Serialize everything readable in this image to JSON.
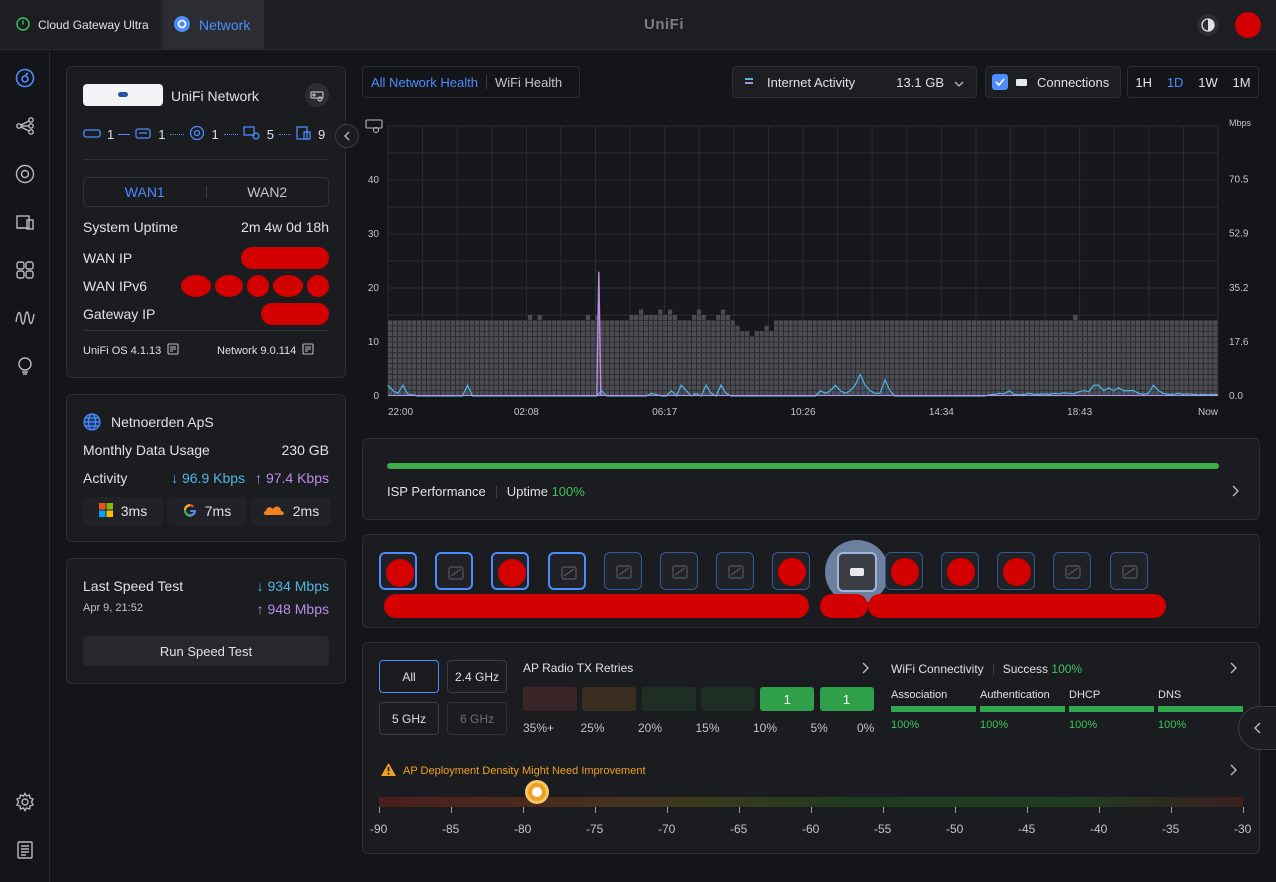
{
  "topbar": {
    "console_name": "Cloud Gateway Ultra",
    "app_name": "Network",
    "brand": "UniFi"
  },
  "colors": {
    "accent": "#4c8cff",
    "green": "#3cc45b",
    "download": "#50b6e0",
    "upload": "#b68ee6",
    "warning": "#f0a020"
  },
  "gateway": {
    "title": "UniFi Network",
    "topology": [
      {
        "icon": "gateway-icon",
        "count": "1"
      },
      {
        "icon": "switch-icon",
        "count": "1"
      },
      {
        "icon": "ap-icon",
        "count": "1"
      },
      {
        "icon": "clients-wired-icon",
        "count": "5"
      },
      {
        "icon": "clients-wifi-icon",
        "count": "9"
      }
    ],
    "wan_tabs": [
      "WAN1",
      "WAN2"
    ],
    "rows": [
      {
        "label": "System Uptime",
        "value": "2m 4w 0d 18h"
      },
      {
        "label": "WAN IP",
        "value": ""
      },
      {
        "label": "WAN IPv6",
        "value": ""
      },
      {
        "label": "Gateway IP",
        "value": ""
      }
    ],
    "os_version": "UniFi OS 4.1.13",
    "network_version": "Network 9.0.114"
  },
  "isp": {
    "name": "Netnoerden ApS",
    "monthly_label": "Monthly Data Usage",
    "monthly_value": "230 GB",
    "activity_label": "Activity",
    "download": "96.9 Kbps",
    "upload": "97.4 Kbps",
    "latencies": [
      {
        "icon": "microsoft-icon",
        "value": "3ms"
      },
      {
        "icon": "google-icon",
        "value": "7ms"
      },
      {
        "icon": "cloudflare-icon",
        "value": "2ms"
      }
    ]
  },
  "speedtest": {
    "title": "Last Speed Test",
    "date": "Apr 9, 21:52",
    "download": "934 Mbps",
    "upload": "948 Mbps",
    "run_label": "Run Speed Test"
  },
  "health_tabs": [
    "All Network Health",
    "WiFi Health"
  ],
  "controls": {
    "metric": "Internet Activity",
    "metric_total": "13.1 GB",
    "connections": "Connections",
    "ranges": [
      "1H",
      "1D",
      "1W",
      "1M"
    ],
    "active_range": "1D"
  },
  "chart_data": {
    "type": "area",
    "title": "Internet Activity",
    "x_tick_labels": [
      "22:00",
      "02:08",
      "06:17",
      "10:26",
      "14:34",
      "18:43",
      "Now"
    ],
    "y_left_ticks": [
      "0",
      "10",
      "20",
      "30",
      "40"
    ],
    "y_right_unit": "Mbps",
    "y_right_ticks": [
      "0.0",
      "17.6",
      "35.2",
      "52.9",
      "70.5"
    ],
    "ylim_left": [
      0,
      50
    ],
    "ylim_right": [
      0,
      88
    ],
    "series": [
      {
        "name": "Connections",
        "color": "#9a9ca3",
        "style": "bars",
        "values": [
          14,
          14,
          14,
          14,
          14,
          14,
          14,
          14,
          14,
          14,
          14,
          14,
          14,
          14,
          14,
          14,
          14,
          14,
          14,
          14,
          14,
          14,
          14,
          14,
          14,
          14,
          14,
          14,
          14,
          15,
          14,
          15,
          14,
          14,
          14,
          14,
          14,
          14,
          14,
          14,
          14,
          15,
          14,
          15,
          14,
          14,
          14,
          14,
          14,
          14,
          15,
          15,
          16,
          15,
          15,
          15,
          16,
          15,
          16,
          15,
          14,
          14,
          14,
          15,
          16,
          15,
          14,
          14,
          15,
          16,
          15,
          14,
          13,
          12,
          12,
          11,
          12,
          12,
          13,
          12,
          14,
          14,
          14,
          14,
          14,
          14,
          14,
          14,
          14,
          14,
          14,
          14,
          14,
          14,
          14,
          14,
          14,
          14,
          14,
          14,
          14,
          14,
          14,
          14,
          14,
          14,
          14,
          14,
          14,
          14,
          14,
          14,
          14,
          14,
          14,
          14,
          14,
          14,
          14,
          14,
          14,
          14,
          14,
          14,
          14,
          14,
          14,
          14,
          14,
          14,
          14,
          14,
          14,
          14,
          14,
          14,
          14,
          14,
          14,
          14,
          14,
          14,
          15,
          14,
          14,
          14,
          14,
          14,
          14,
          14,
          14,
          14,
          14,
          14,
          14,
          14,
          14,
          14,
          14,
          14,
          14,
          14,
          14,
          14,
          14,
          14,
          14,
          14,
          14,
          14,
          14,
          14
        ]
      },
      {
        "name": "Download",
        "color": "#50b6e0",
        "style": "line",
        "values": [
          2,
          1,
          0.5,
          2,
          0.3,
          0.2,
          0,
          0,
          0,
          0,
          0,
          0,
          0,
          0,
          0,
          0,
          2,
          0,
          0,
          0,
          0,
          0,
          0,
          0,
          0,
          0,
          0,
          0,
          0,
          0,
          0,
          0,
          0,
          0,
          0,
          0,
          0,
          0,
          0,
          0,
          0,
          0,
          0,
          1,
          0,
          0,
          0,
          0,
          0,
          0,
          0,
          0,
          0,
          0.5,
          0.3,
          0,
          0,
          1,
          0,
          2,
          1,
          0,
          0.5,
          0,
          2,
          0.5,
          0,
          2,
          0.5,
          0,
          0,
          0,
          0,
          0,
          0,
          0,
          0,
          0,
          0,
          0,
          0,
          0,
          0,
          0,
          0,
          0,
          0,
          1,
          0.5,
          1,
          2,
          1,
          0.5,
          1,
          2,
          4,
          2,
          1,
          0.5,
          0.5,
          3,
          1,
          0,
          0,
          0,
          0,
          0,
          0,
          0,
          0,
          0,
          0,
          0,
          0,
          0,
          0,
          0,
          0,
          0,
          0,
          0,
          0.2,
          0.3,
          0.5,
          0.4,
          1,
          0.3,
          0.2,
          0.3,
          0.5,
          0.3,
          0.3,
          0.4,
          0.3,
          0.5,
          0.4,
          0.6,
          0.5,
          0.4,
          0.8,
          1,
          0.8,
          2,
          2,
          1,
          1.5,
          1,
          1.5,
          1,
          1,
          1,
          0.5,
          0.3,
          0.5,
          2,
          1,
          0.5,
          0.3,
          0.3,
          0.5,
          0.3,
          0.4,
          0.3,
          0.2,
          0.3,
          0.2,
          0.3,
          0.2
        ]
      },
      {
        "name": "Upload",
        "color": "#b68ee6",
        "style": "spike",
        "values": [
          {
            "x": 0.254,
            "y": 23
          }
        ]
      }
    ]
  },
  "isp_perf": {
    "label": "ISP Performance",
    "uptime_label": "Uptime",
    "uptime_value": "100%",
    "bar_fill": 1.0
  },
  "devices": {
    "count": 14,
    "selected_index": 8
  },
  "tx_retries": {
    "title": "AP Radio TX Retries",
    "bands": [
      "All",
      "2.4 GHz",
      "5 GHz",
      "6 GHz"
    ],
    "active_band": "All",
    "buckets": [
      {
        "label": "35%+",
        "count": "",
        "color": "#3a2528"
      },
      {
        "label": "25%",
        "count": "",
        "color": "#3a2e20"
      },
      {
        "label": "20%",
        "count": "",
        "color": "#1f2e24"
      },
      {
        "label": "15%",
        "count": "",
        "color": "#1f2e24"
      },
      {
        "label": "10%",
        "count": "1",
        "color": "#2ea049"
      },
      {
        "label": "5%",
        "count": "1",
        "color": "#2ea049"
      },
      {
        "label": "0%",
        "count": "",
        "color": ""
      }
    ]
  },
  "wifi_conn": {
    "title": "WiFi Connectivity",
    "success_label": "Success",
    "success_value": "100%",
    "stages": [
      {
        "label": "Association",
        "value": "100%",
        "fill": 1.0
      },
      {
        "label": "Authentication",
        "value": "100%",
        "fill": 1.0
      },
      {
        "label": "DHCP",
        "value": "100%",
        "fill": 1.0
      },
      {
        "label": "DNS",
        "value": "100%",
        "fill": 1.0
      }
    ]
  },
  "density": {
    "warning": "AP Deployment Density Might Need Improvement",
    "ticks": [
      "-90",
      "-85",
      "-80",
      "-75",
      "-70",
      "-65",
      "-60",
      "-55",
      "-50",
      "-45",
      "-40",
      "-35",
      "-30"
    ],
    "range": [
      -90,
      -30
    ],
    "marker_value": -79
  }
}
